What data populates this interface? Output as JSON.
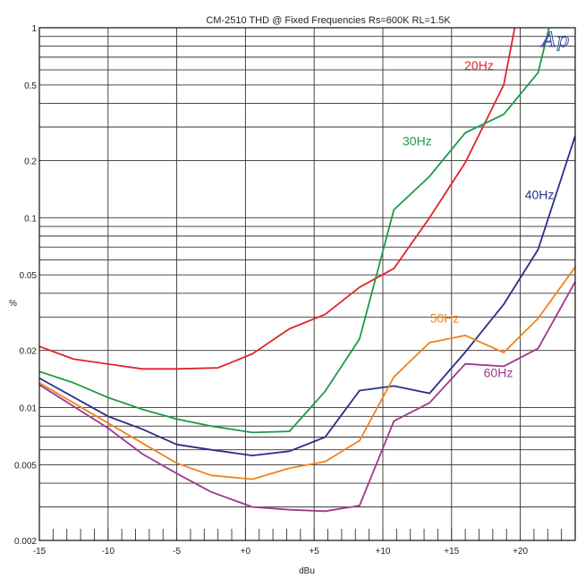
{
  "chart_data": {
    "type": "line",
    "title": "CM-2510 THD @ Fixed Frequencies  Rs=600K RL=1.5K",
    "xlabel": "dBu",
    "ylabel": "%",
    "xlim": [
      -15,
      24
    ],
    "ylim": [
      0.002,
      1
    ],
    "yscale": "log",
    "grid": true,
    "x_ticks": [
      -15,
      -10,
      -5,
      0,
      5,
      10,
      15,
      20
    ],
    "x_tick_labels": [
      "-15",
      "-10",
      "-5",
      "+0",
      "+5",
      "+10",
      "+15",
      "+20"
    ],
    "y_ticks": [
      0.002,
      0.005,
      0.01,
      0.02,
      0.05,
      0.1,
      0.2,
      0.5,
      1
    ],
    "y_tick_labels": [
      "0.002",
      "0.005",
      "0.01",
      "0.02",
      "0.05",
      "0.1",
      "0.2",
      "0.5",
      "1"
    ],
    "series": [
      {
        "name": "20Hz",
        "color": "#e0242b",
        "x": [
          -15,
          -12.5,
          -7.5,
          -5,
          -2,
          0.5,
          3.2,
          5.8,
          8.3,
          10.8,
          13.4,
          16,
          18.8,
          19.6
        ],
        "y": [
          0.021,
          0.018,
          0.016,
          0.016,
          0.0162,
          0.0192,
          0.026,
          0.031,
          0.043,
          0.054,
          0.1,
          0.195,
          0.5,
          1
        ]
      },
      {
        "name": "30Hz",
        "color": "#1a9b48",
        "x": [
          -15,
          -12.5,
          -10,
          -7.5,
          -5,
          -2.5,
          0.5,
          3.2,
          5.8,
          8.3,
          10.8,
          13.4,
          16,
          18.8,
          21.3,
          22.1
        ],
        "y": [
          0.0155,
          0.0135,
          0.0113,
          0.0098,
          0.0087,
          0.008,
          0.0074,
          0.0075,
          0.0122,
          0.023,
          0.11,
          0.165,
          0.28,
          0.35,
          0.58,
          1
        ]
      },
      {
        "name": "40Hz",
        "color": "#2a2f86",
        "x": [
          -15,
          -10,
          -7.5,
          -5,
          -2.5,
          0.5,
          3.2,
          5.8,
          8.3,
          10.8,
          13.4,
          16,
          18.8,
          21.3,
          24
        ],
        "y": [
          0.0143,
          0.009,
          0.0077,
          0.0064,
          0.006,
          0.0056,
          0.0059,
          0.007,
          0.0123,
          0.013,
          0.0119,
          0.0196,
          0.035,
          0.068,
          0.27
        ]
      },
      {
        "name": "50Hz",
        "color": "#f0821e",
        "x": [
          -15,
          -10,
          -7.5,
          -5,
          -2.5,
          0.5,
          3.2,
          5.8,
          8.3,
          10.8,
          13.4,
          16,
          18.8,
          21.3,
          24
        ],
        "y": [
          0.0135,
          0.0083,
          0.0065,
          0.0051,
          0.0044,
          0.0042,
          0.0048,
          0.0052,
          0.0067,
          0.0145,
          0.022,
          0.024,
          0.0195,
          0.0295,
          0.055
        ]
      },
      {
        "name": "60Hz",
        "color": "#9b3a8e",
        "x": [
          -15,
          -10,
          -7.5,
          -5,
          -2.5,
          0.5,
          3.2,
          5.8,
          8.3,
          10.8,
          13.4,
          16,
          18.8,
          21.3,
          24
        ],
        "y": [
          0.0132,
          0.0078,
          0.0057,
          0.0045,
          0.0036,
          0.003,
          0.0029,
          0.00285,
          0.00305,
          0.0085,
          0.0106,
          0.017,
          0.0165,
          0.0205,
          0.046
        ]
      }
    ]
  },
  "logo": {
    "text": "Ap",
    "color": "#3a4fa0"
  }
}
